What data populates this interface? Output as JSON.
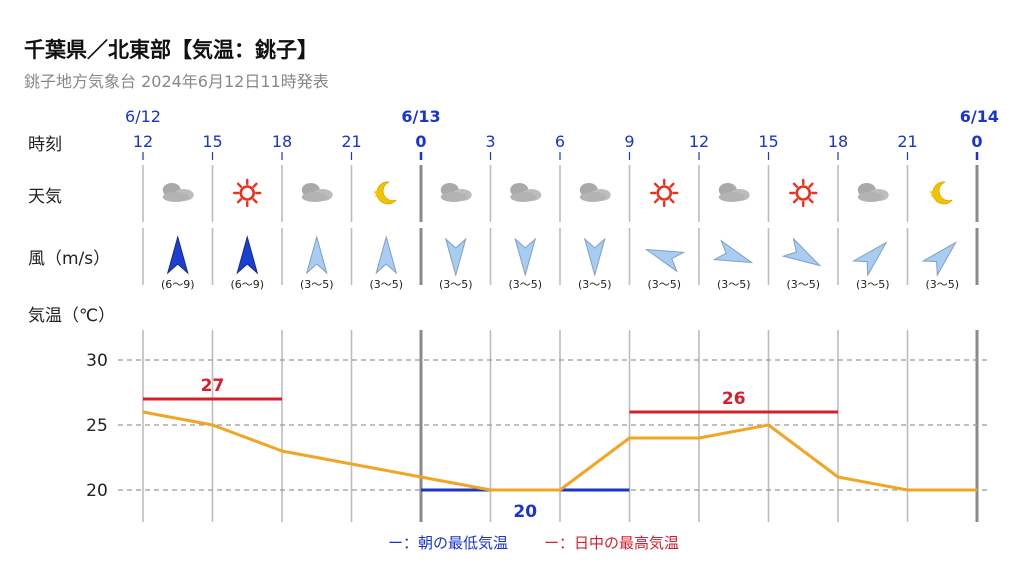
{
  "title": "千葉県／北東部【気温：銚子】",
  "subtitle": "銚子地方気象台 2024年6月12日11時発表",
  "row_labels": {
    "time": "時刻",
    "weather": "天気",
    "wind": "風（m/s）",
    "temp": "気温（℃）"
  },
  "date_labels": [
    {
      "slot": 0,
      "text": "6/12",
      "bold": false
    },
    {
      "slot": 4,
      "text": "6/13",
      "bold": true
    },
    {
      "slot": 12,
      "text": "6/14",
      "bold": true
    }
  ],
  "hours": [
    "12",
    "15",
    "18",
    "21",
    "0",
    "3",
    "6",
    "9",
    "12",
    "15",
    "18",
    "21",
    "0"
  ],
  "weather": [
    {
      "icon": "cloud-icon"
    },
    {
      "icon": "sun-icon"
    },
    {
      "icon": "cloud-icon"
    },
    {
      "icon": "moon-icon"
    },
    {
      "icon": "cloud-icon"
    },
    {
      "icon": "cloud-icon"
    },
    {
      "icon": "cloud-icon"
    },
    {
      "icon": "sun-icon"
    },
    {
      "icon": "cloud-icon"
    },
    {
      "icon": "sun-icon"
    },
    {
      "icon": "cloud-icon"
    },
    {
      "icon": "moon-icon"
    }
  ],
  "wind": [
    {
      "dir_deg": 0,
      "speed": "(6～9)",
      "strong": true
    },
    {
      "dir_deg": 0,
      "speed": "(6～9)",
      "strong": true
    },
    {
      "dir_deg": 0,
      "speed": "(3～5)",
      "strong": false
    },
    {
      "dir_deg": 0,
      "speed": "(3～5)",
      "strong": false
    },
    {
      "dir_deg": 180,
      "speed": "(3～5)",
      "strong": false
    },
    {
      "dir_deg": 180,
      "speed": "(3～5)",
      "strong": false
    },
    {
      "dir_deg": 180,
      "speed": "(3～5)",
      "strong": false
    },
    {
      "dir_deg": 290,
      "speed": "(3～5)",
      "strong": false
    },
    {
      "dir_deg": 110,
      "speed": "(3～5)",
      "strong": false
    },
    {
      "dir_deg": 120,
      "speed": "(3～5)",
      "strong": false
    },
    {
      "dir_deg": 45,
      "speed": "(3～5)",
      "strong": false
    },
    {
      "dir_deg": 45,
      "speed": "(3～5)",
      "strong": false
    }
  ],
  "legend": {
    "min": "ー：朝の最低気温",
    "max": "ー：日中の最高気温"
  },
  "colors": {
    "temp_line": "#f0a524",
    "min": "#1a35c9",
    "max": "#d3202c",
    "date": "#1a35c9",
    "wind_strong": "#1c3fcf",
    "wind_weak": "#a9cdf2"
  },
  "chart_data": {
    "type": "line",
    "x": [
      "12",
      "15",
      "18",
      "21",
      "0",
      "3",
      "6",
      "9",
      "12",
      "15",
      "18",
      "21",
      "0"
    ],
    "series": [
      {
        "values": [
          26,
          25,
          23,
          22,
          21,
          20,
          20,
          24,
          24,
          25,
          21,
          20,
          20
        ]
      }
    ],
    "ylabel": "気温（℃）",
    "ylim": [
      18,
      30
    ],
    "yticks": [
      20,
      25,
      30
    ],
    "grid": true,
    "daily_min": [
      {
        "value": 20,
        "from": 4,
        "to": 7
      }
    ],
    "daily_max": [
      {
        "value": 27,
        "from": 0,
        "to": 2
      },
      {
        "value": 26,
        "from": 7,
        "to": 10
      }
    ]
  }
}
